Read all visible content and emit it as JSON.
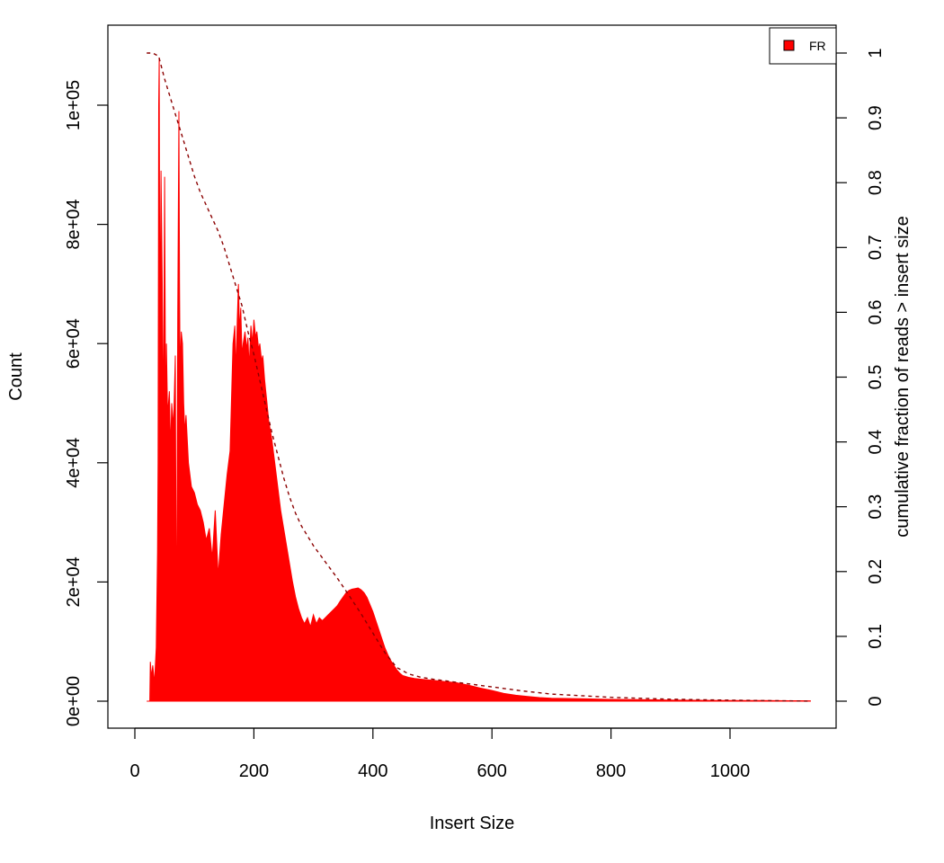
{
  "chart_data": {
    "type": "area",
    "title": "",
    "xlabel": "Insert Size",
    "ylabel": "Count",
    "y2label": "cumulative fraction of reads > insert size",
    "xlim": [
      0,
      1135
    ],
    "ylim": [
      0,
      109000
    ],
    "y2lim": [
      0,
      1
    ],
    "x_ticks": [
      0,
      200,
      400,
      600,
      800,
      1000
    ],
    "x_tick_labels": [
      "0",
      "200",
      "400",
      "600",
      "800",
      "1000"
    ],
    "y_ticks": [
      0,
      20000,
      40000,
      60000,
      80000,
      100000
    ],
    "y_tick_labels": [
      "0e+00",
      "2e+04",
      "4e+04",
      "6e+04",
      "8e+04",
      "1e+05"
    ],
    "y2_ticks": [
      0,
      0.1,
      0.2,
      0.3,
      0.4,
      0.5,
      0.6,
      0.7,
      0.8,
      0.9,
      1
    ],
    "y2_tick_labels": [
      "0",
      "0.1",
      "0.2",
      "0.3",
      "0.4",
      "0.5",
      "0.6",
      "0.7",
      "0.8",
      "0.9",
      "1"
    ],
    "grid": false,
    "legend": {
      "position": "top-right",
      "entries": [
        {
          "label": "FR",
          "color": "#ff0000"
        }
      ]
    },
    "series": [
      {
        "name": "FR",
        "axis": "left",
        "style": "histogram",
        "color": "#ff0000",
        "x": [
          20,
          25,
          26,
          28,
          30,
          33,
          36,
          38,
          39,
          40,
          41,
          42,
          44,
          46,
          48,
          50,
          52,
          53,
          55,
          58,
          60,
          62,
          65,
          68,
          70,
          72,
          74,
          75,
          76,
          78,
          80,
          82,
          84,
          86,
          90,
          95,
          100,
          105,
          110,
          115,
          120,
          125,
          130,
          135,
          140,
          145,
          150,
          155,
          160,
          165,
          168,
          170,
          172,
          174,
          176,
          178,
          180,
          182,
          185,
          188,
          190,
          192,
          195,
          198,
          200,
          203,
          205,
          208,
          210,
          213,
          215,
          218,
          220,
          222,
          225,
          230,
          235,
          240,
          245,
          250,
          255,
          260,
          265,
          270,
          275,
          280,
          285,
          290,
          295,
          300,
          305,
          310,
          315,
          320,
          325,
          330,
          335,
          340,
          345,
          350,
          355,
          360,
          365,
          370,
          375,
          380,
          385,
          390,
          395,
          400,
          405,
          410,
          415,
          420,
          425,
          430,
          435,
          440,
          445,
          450,
          460,
          470,
          480,
          490,
          500,
          520,
          540,
          560,
          580,
          600,
          620,
          640,
          660,
          680,
          700,
          750,
          800,
          850,
          900,
          950,
          1000,
          1050,
          1100,
          1135
        ],
        "values": [
          0,
          0,
          6600,
          4000,
          6000,
          3000,
          9000,
          25000,
          40000,
          100000,
          108000,
          60000,
          89000,
          70000,
          45000,
          88000,
          40000,
          60000,
          48000,
          52000,
          42000,
          50000,
          46000,
          58000,
          5000,
          65000,
          99000,
          70000,
          55000,
          62000,
          60000,
          50000,
          45000,
          48000,
          40000,
          36000,
          35000,
          33000,
          32000,
          30000,
          27000,
          29000,
          24000,
          32000,
          21000,
          28000,
          33000,
          38000,
          42000,
          60000,
          63000,
          55000,
          64000,
          70000,
          62000,
          66000,
          58000,
          60000,
          62000,
          59000,
          61000,
          56000,
          63000,
          60000,
          64000,
          61000,
          62000,
          59000,
          60000,
          57000,
          58000,
          54000,
          52000,
          50000,
          47000,
          44000,
          40000,
          36000,
          32000,
          29000,
          26000,
          23000,
          20000,
          17500,
          15500,
          14000,
          13000,
          14000,
          12500,
          14500,
          13000,
          14000,
          13500,
          14000,
          14500,
          15000,
          15500,
          16000,
          16800,
          17500,
          18200,
          18600,
          18800,
          18900,
          19000,
          18700,
          18200,
          17400,
          16200,
          15000,
          13500,
          12000,
          10500,
          9000,
          7800,
          6800,
          6000,
          5300,
          4700,
          4300,
          4000,
          3800,
          3700,
          3600,
          3500,
          3300,
          3100,
          2700,
          2200,
          1800,
          1300,
          1000,
          800,
          600,
          500,
          400,
          300,
          250,
          200,
          150,
          120,
          100,
          80,
          60
        ]
      },
      {
        "name": "cumulative fraction of reads > insert size",
        "axis": "right",
        "style": "dashed-line",
        "color": "#8b0000",
        "x": [
          20,
          30,
          40,
          50,
          60,
          70,
          80,
          90,
          100,
          110,
          120,
          130,
          140,
          150,
          160,
          170,
          180,
          190,
          200,
          210,
          220,
          230,
          240,
          250,
          260,
          270,
          280,
          290,
          300,
          320,
          340,
          360,
          380,
          400,
          420,
          440,
          460,
          480,
          500,
          550,
          600,
          650,
          700,
          800,
          900,
          1000,
          1100,
          1135
        ],
        "values": [
          1.0,
          1.0,
          0.995,
          0.96,
          0.93,
          0.9,
          0.87,
          0.84,
          0.81,
          0.785,
          0.765,
          0.745,
          0.725,
          0.7,
          0.67,
          0.64,
          0.61,
          0.57,
          0.535,
          0.495,
          0.455,
          0.415,
          0.38,
          0.345,
          0.315,
          0.29,
          0.27,
          0.255,
          0.24,
          0.215,
          0.19,
          0.163,
          0.135,
          0.105,
          0.075,
          0.052,
          0.042,
          0.037,
          0.034,
          0.028,
          0.022,
          0.016,
          0.011,
          0.006,
          0.003,
          0.0015,
          0.0005,
          0.0
        ]
      }
    ]
  }
}
